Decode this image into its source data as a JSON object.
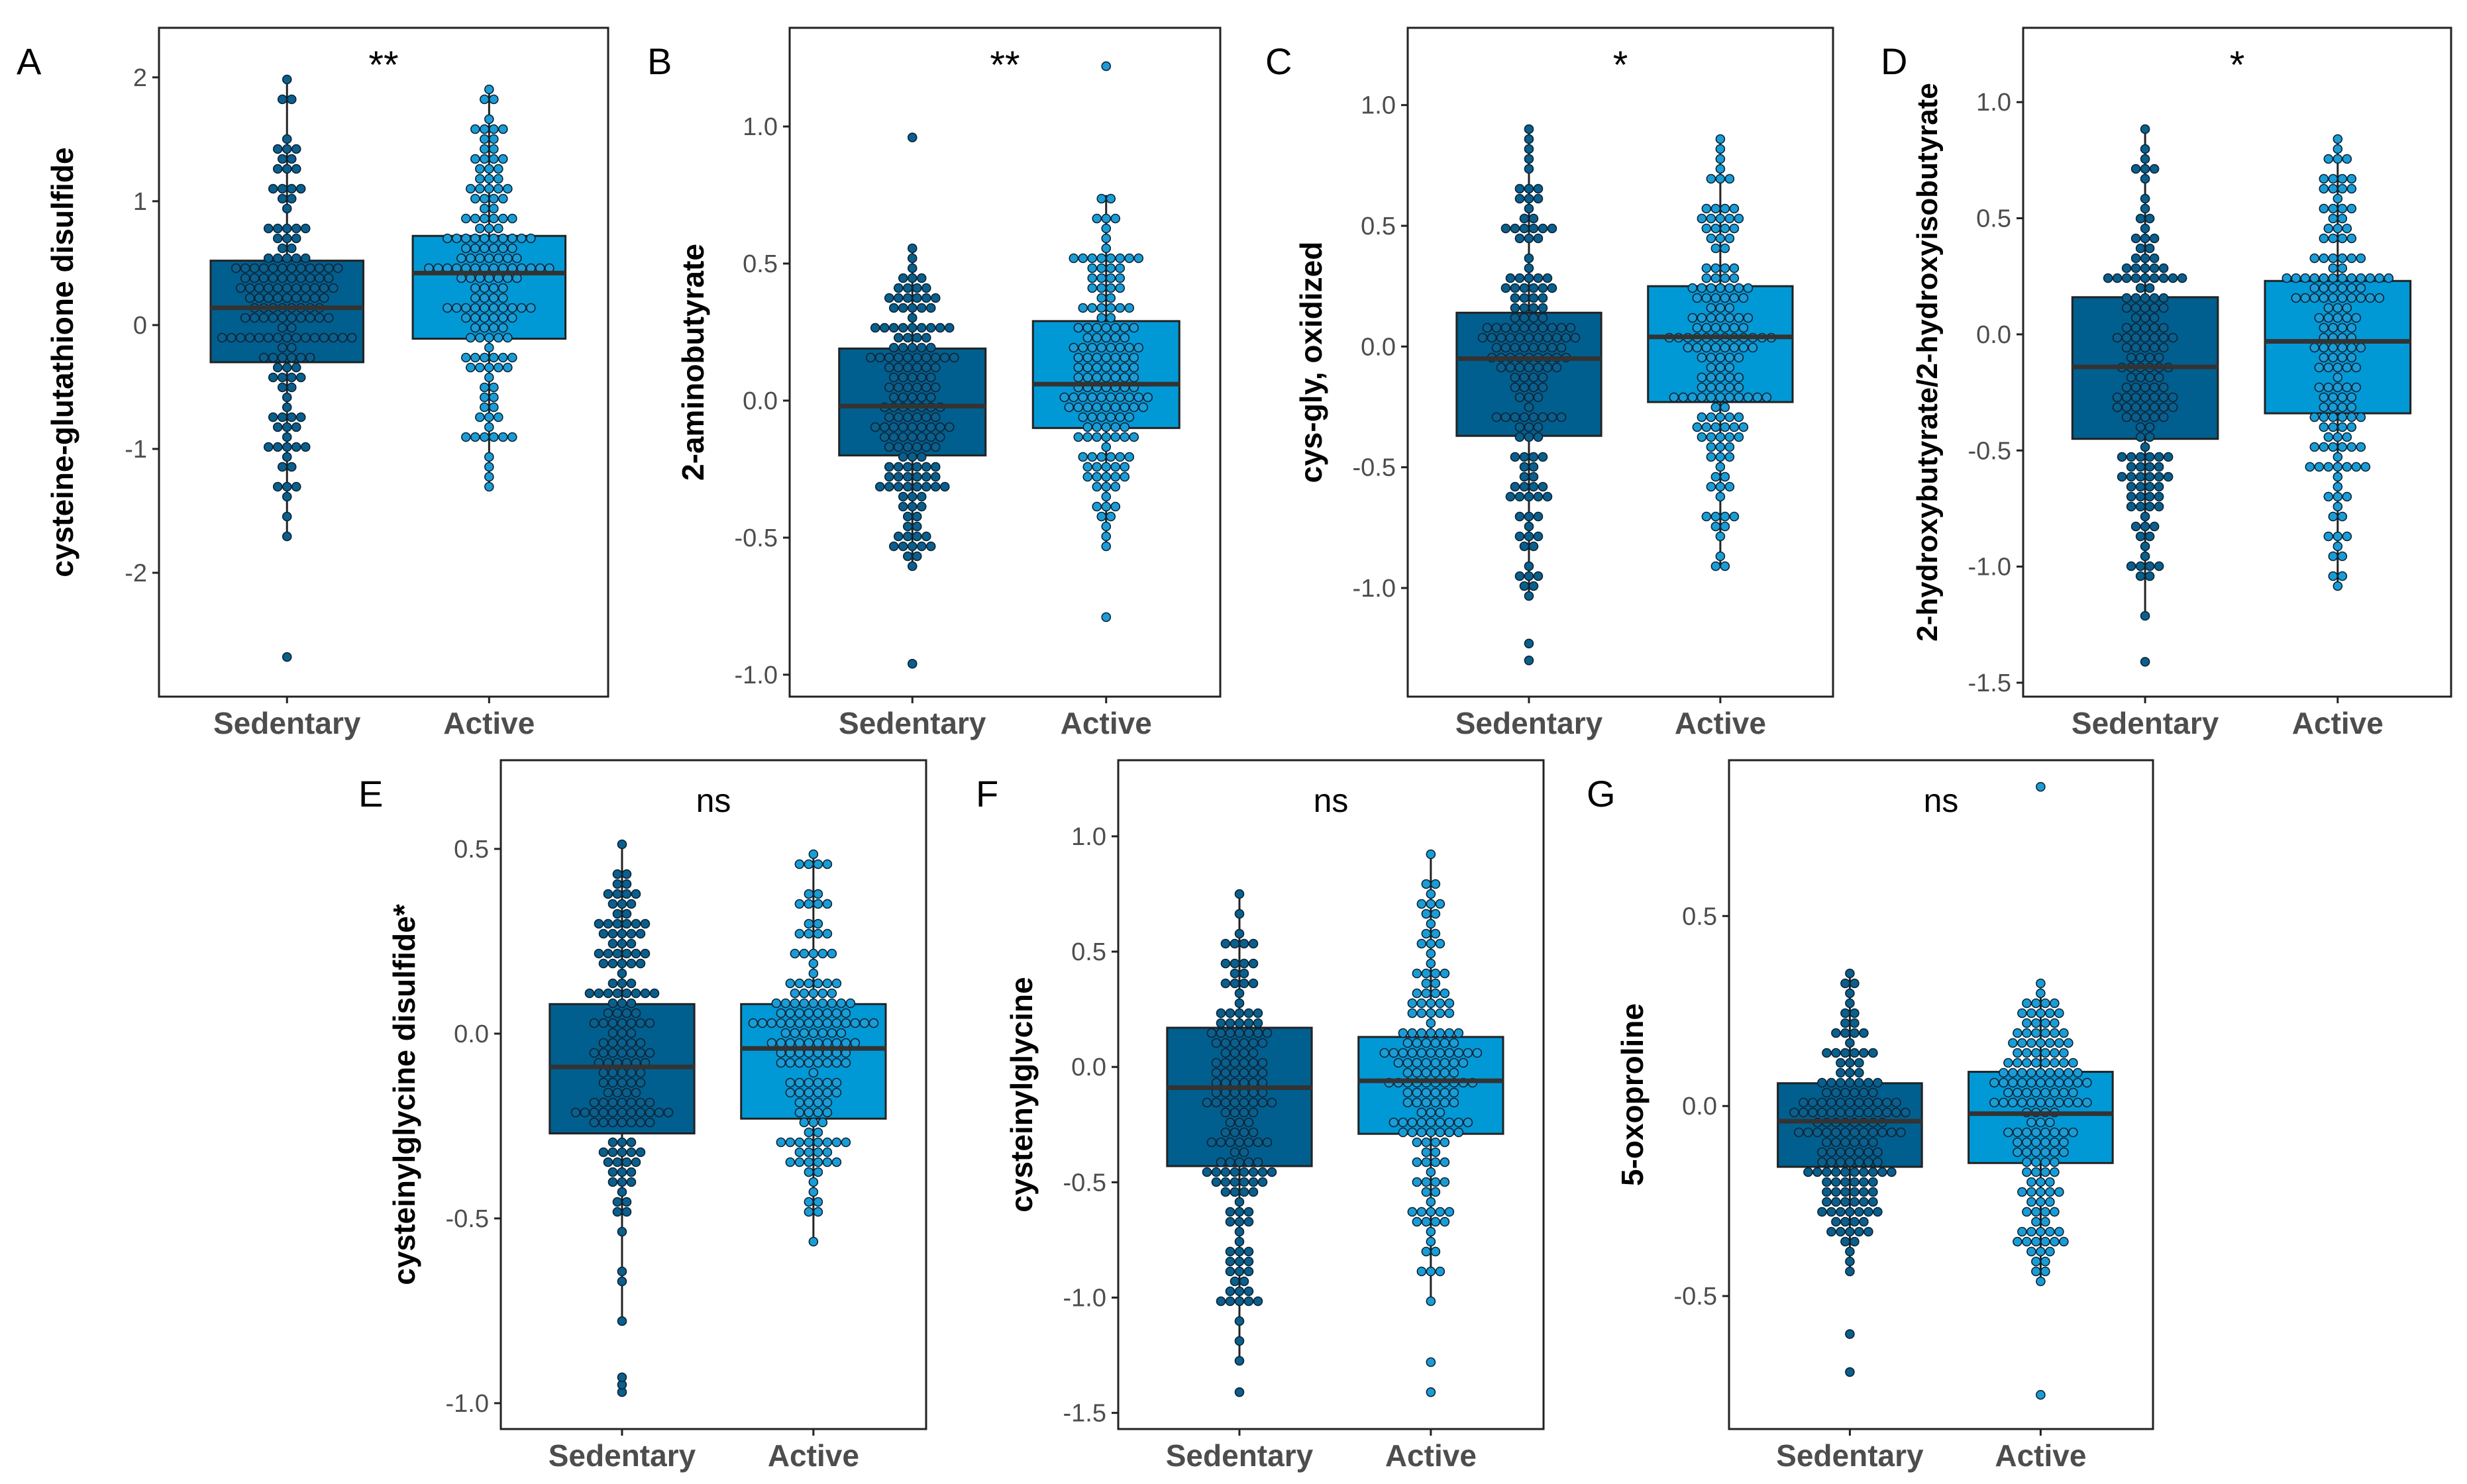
{
  "colors": {
    "sedentary_fill": "#005f8e",
    "active_fill": "#0099d6",
    "sedentary_dot": "#0a5f8c",
    "active_dot": "#1a9dd6",
    "dot_stroke": "#0b2233",
    "median": "#333333",
    "frame": "#222222",
    "tick_text": "#4d4d4d",
    "group_text": "#4d4d4d",
    "label_text": "#000000"
  },
  "chart_data": [
    {
      "id": "A",
      "type": "box-dot",
      "panel_label": "A",
      "significance": "**",
      "ylabel": "cysteine-glutathione disulfide",
      "categories": [
        "Sedentary",
        "Active"
      ],
      "ylim": [
        -3.0,
        2.4
      ],
      "yticks": [
        -2,
        -1,
        0,
        1,
        2
      ],
      "boxes": [
        {
          "name": "Sedentary",
          "q1": -0.3,
          "median": 0.14,
          "q3": 0.52,
          "whisker_low": -1.72,
          "whisker_high": 2.0,
          "outliers": [
            -2.68
          ]
        },
        {
          "name": "Active",
          "q1": -0.11,
          "median": 0.42,
          "q3": 0.72,
          "whisker_low": -1.3,
          "whisker_high": 1.9,
          "outliers": []
        }
      ]
    },
    {
      "id": "B",
      "type": "box-dot",
      "panel_label": "B",
      "significance": "**",
      "ylabel": "2-aminobutyrate",
      "categories": [
        "Sedentary",
        "Active"
      ],
      "ylim": [
        -1.08,
        1.36
      ],
      "yticks": [
        -1.0,
        -0.5,
        0.0,
        0.5,
        1.0
      ],
      "tick_labels": [
        "-1.0",
        "-0.5",
        "0.0",
        "0.5",
        "1.0"
      ],
      "boxes": [
        {
          "name": "Sedentary",
          "q1": -0.2,
          "median": -0.02,
          "q3": 0.19,
          "whisker_low": -0.61,
          "whisker_high": 0.56,
          "outliers": [
            -0.96,
            0.96
          ]
        },
        {
          "name": "Active",
          "q1": -0.1,
          "median": 0.06,
          "q3": 0.29,
          "whisker_low": -0.52,
          "whisker_high": 0.75,
          "outliers": [
            -0.79,
            1.22
          ]
        }
      ]
    },
    {
      "id": "C",
      "type": "box-dot",
      "panel_label": "C",
      "significance": "*",
      "ylabel": "cys-gly, oxidized",
      "categories": [
        "Sedentary",
        "Active"
      ],
      "ylim": [
        -1.45,
        1.32
      ],
      "yticks": [
        -1.0,
        -0.5,
        0.0,
        0.5,
        1.0
      ],
      "tick_labels": [
        "-1.0",
        "-0.5",
        "0.0",
        "0.5",
        "1.0"
      ],
      "boxes": [
        {
          "name": "Sedentary",
          "q1": -0.37,
          "median": -0.05,
          "q3": 0.14,
          "whisker_low": -1.03,
          "whisker_high": 0.91,
          "outliers": [
            -1.3,
            -1.23
          ]
        },
        {
          "name": "Active",
          "q1": -0.23,
          "median": 0.04,
          "q3": 0.25,
          "whisker_low": -0.91,
          "whisker_high": 0.87,
          "outliers": []
        }
      ]
    },
    {
      "id": "D",
      "type": "box-dot",
      "panel_label": "D",
      "significance": "*",
      "ylabel": "2-hydroxybutyrate/2-hydroxyisobutyrate",
      "categories": [
        "Sedentary",
        "Active"
      ],
      "ylim": [
        -1.56,
        1.32
      ],
      "yticks": [
        -1.5,
        -1.0,
        -0.5,
        0.0,
        0.5,
        1.0
      ],
      "tick_labels": [
        "-1.5",
        "-1.0",
        "-0.5",
        "0.0",
        "0.5",
        "1.0"
      ],
      "boxes": [
        {
          "name": "Sedentary",
          "q1": -0.45,
          "median": -0.14,
          "q3": 0.16,
          "whisker_low": -1.23,
          "whisker_high": 0.87,
          "outliers": [
            -1.41
          ]
        },
        {
          "name": "Active",
          "q1": -0.34,
          "median": -0.03,
          "q3": 0.23,
          "whisker_low": -1.08,
          "whisker_high": 0.83,
          "outliers": []
        }
      ]
    },
    {
      "id": "E",
      "type": "box-dot",
      "panel_label": "E",
      "significance": "ns",
      "ylabel": "cysteinylglycine disulfide*",
      "categories": [
        "Sedentary",
        "Active"
      ],
      "ylim": [
        -1.07,
        0.74
      ],
      "yticks": [
        -1.0,
        -0.5,
        0.0,
        0.5
      ],
      "tick_labels": [
        "-1.0",
        "-0.5",
        "0.0",
        "0.5"
      ],
      "boxes": [
        {
          "name": "Sedentary",
          "q1": -0.27,
          "median": -0.09,
          "q3": 0.08,
          "whisker_low": -0.78,
          "whisker_high": 0.5,
          "outliers": [
            -0.97,
            -0.95,
            -0.93
          ]
        },
        {
          "name": "Active",
          "q1": -0.23,
          "median": -0.04,
          "q3": 0.08,
          "whisker_low": -0.55,
          "whisker_high": 0.48,
          "outliers": []
        }
      ]
    },
    {
      "id": "F",
      "type": "box-dot",
      "panel_label": "F",
      "significance": "ns",
      "ylabel": "cysteinylglycine",
      "categories": [
        "Sedentary",
        "Active"
      ],
      "ylim": [
        -1.57,
        1.33
      ],
      "yticks": [
        -1.5,
        -1.0,
        -0.5,
        0.0,
        0.5,
        1.0
      ],
      "tick_labels": [
        "-1.5",
        "-1.0",
        "-0.5",
        "0.0",
        "0.5",
        "1.0"
      ],
      "boxes": [
        {
          "name": "Sedentary",
          "q1": -0.43,
          "median": -0.09,
          "q3": 0.17,
          "whisker_low": -1.27,
          "whisker_high": 0.75,
          "outliers": [
            -1.41
          ]
        },
        {
          "name": "Active",
          "q1": -0.29,
          "median": -0.06,
          "q3": 0.13,
          "whisker_low": -1.0,
          "whisker_high": 0.93,
          "outliers": [
            -1.41,
            -1.28
          ]
        }
      ]
    },
    {
      "id": "G",
      "type": "box-dot",
      "panel_label": "G",
      "significance": "ns",
      "ylabel": "5-oxoproline",
      "categories": [
        "Sedentary",
        "Active"
      ],
      "ylim": [
        -0.85,
        0.91
      ],
      "yticks": [
        -0.5,
        0.0,
        0.5
      ],
      "tick_labels": [
        "-0.5",
        "0.0",
        "0.5"
      ],
      "boxes": [
        {
          "name": "Sedentary",
          "q1": -0.16,
          "median": -0.04,
          "q3": 0.06,
          "whisker_low": -0.43,
          "whisker_high": 0.36,
          "outliers": [
            -0.7,
            -0.6
          ]
        },
        {
          "name": "Active",
          "q1": -0.15,
          "median": -0.02,
          "q3": 0.09,
          "whisker_low": -0.47,
          "whisker_high": 0.31,
          "outliers": [
            -0.76,
            0.84
          ]
        }
      ]
    }
  ]
}
